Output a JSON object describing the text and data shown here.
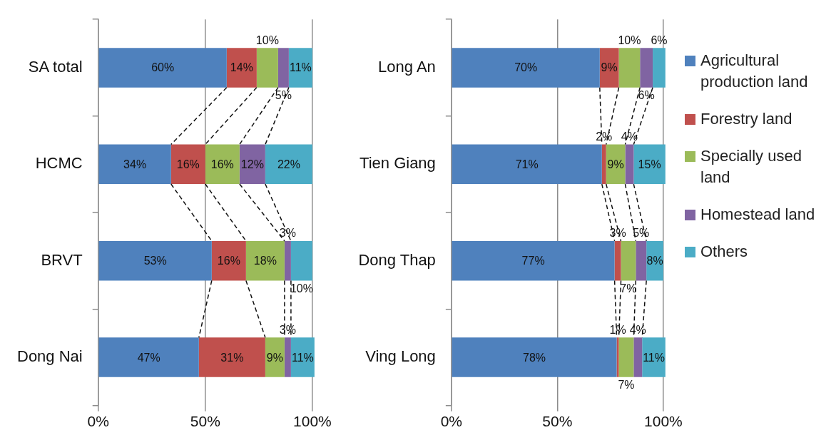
{
  "chart_data": [
    {
      "type": "bar",
      "orientation": "horizontal",
      "stacked": true,
      "categories": [
        "SA total",
        "HCMC",
        "BRVT",
        "Dong Nai"
      ],
      "xlim": [
        0,
        101
      ],
      "xticks": [
        {
          "value": 0,
          "label": "0%"
        },
        {
          "value": 50,
          "label": "50%"
        },
        {
          "value": 100,
          "label": "100%"
        }
      ],
      "grid": "x",
      "legend": false,
      "series": [
        {
          "color": "#4f81bd",
          "values": [
            60,
            34,
            53,
            47
          ],
          "value_labels": [
            "60%",
            "34%",
            "53%",
            "47%"
          ]
        },
        {
          "color": "#c0504d",
          "values": [
            14,
            16,
            16,
            31
          ],
          "value_labels": [
            "14%",
            "16%",
            "16%",
            "31%"
          ]
        },
        {
          "color": "#9bbb59",
          "values": [
            10,
            16,
            18,
            9
          ],
          "value_labels": [
            "10%",
            "16%",
            "18%",
            "9%"
          ]
        },
        {
          "color": "#8064a2",
          "values": [
            5,
            12,
            3,
            3
          ],
          "value_labels": [
            "5%",
            "12%",
            "3%",
            "3%"
          ]
        },
        {
          "color": "#4bacc6",
          "values": [
            11,
            22,
            10,
            11
          ],
          "value_labels": [
            "11%",
            "22%",
            "10%",
            "11%"
          ]
        }
      ]
    },
    {
      "type": "bar",
      "orientation": "horizontal",
      "stacked": true,
      "categories": [
        "Long An",
        "Tien Giang",
        "Dong Thap",
        "Ving Long"
      ],
      "xlim": [
        0,
        101
      ],
      "xticks": [
        {
          "value": 0,
          "label": "0%"
        },
        {
          "value": 50,
          "label": "50%"
        },
        {
          "value": 100,
          "label": "100%"
        }
      ],
      "grid": "x",
      "legend": "right",
      "series": [
        {
          "name": "Agricultural production land",
          "color": "#4f81bd",
          "values": [
            70,
            71,
            77,
            78
          ],
          "value_labels": [
            "70%",
            "71%",
            "77%",
            "78%"
          ]
        },
        {
          "name": "Forestry land",
          "color": "#c0504d",
          "values": [
            9,
            2,
            3,
            1
          ],
          "value_labels": [
            "9%",
            "2%",
            "3%",
            "1%"
          ]
        },
        {
          "name": "Specially used land",
          "color": "#9bbb59",
          "values": [
            10,
            9,
            7,
            7
          ],
          "value_labels": [
            "10%",
            "9%",
            "7%",
            "7%"
          ]
        },
        {
          "name": "Homestead land",
          "color": "#8064a2",
          "values": [
            6,
            4,
            5,
            4
          ],
          "value_labels": [
            "6%",
            "4%",
            "5%",
            "4%"
          ]
        },
        {
          "name": "Others",
          "color": "#4bacc6",
          "values": [
            6,
            15,
            8,
            11
          ],
          "value_labels": [
            "6%",
            "15%",
            "8%",
            "11%"
          ]
        }
      ]
    }
  ]
}
